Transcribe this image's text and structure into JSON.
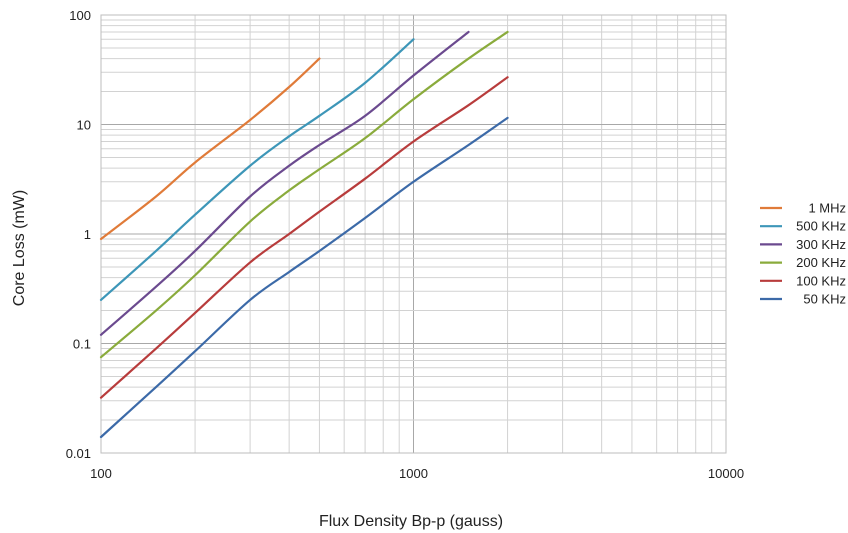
{
  "chart_data": {
    "type": "line",
    "title": "",
    "xlabel": "Flux Density Bp-p (gauss)",
    "ylabel": "Core Loss (mW)",
    "x_scale": "log",
    "y_scale": "log",
    "xlim": [
      100,
      10000
    ],
    "ylim": [
      0.01,
      100
    ],
    "x_ticks": [
      100,
      1000,
      10000
    ],
    "x_tick_labels": [
      "100",
      "1000",
      "10000"
    ],
    "y_ticks": [
      0.01,
      0.1,
      1,
      10,
      100
    ],
    "y_tick_labels": [
      "0.01",
      "0.1",
      "1",
      "10",
      "100"
    ],
    "grid": true,
    "legend_position": "right",
    "series": [
      {
        "name": "1 MHz",
        "color": "#e07b39",
        "x": [
          100,
          150,
          200,
          300,
          400,
          500
        ],
        "y": [
          0.9,
          2.2,
          4.5,
          11,
          22,
          40
        ]
      },
      {
        "name": "500 KHz",
        "color": "#3d96b8",
        "x": [
          100,
          150,
          200,
          300,
          400,
          500,
          700,
          1000
        ],
        "y": [
          0.25,
          0.7,
          1.5,
          4.2,
          7.8,
          12,
          24,
          60
        ]
      },
      {
        "name": "300 KHz",
        "color": "#6b4a8f",
        "x": [
          100,
          150,
          200,
          300,
          400,
          500,
          700,
          1000,
          1500
        ],
        "y": [
          0.12,
          0.33,
          0.7,
          2.2,
          4.2,
          6.5,
          12,
          28,
          70
        ]
      },
      {
        "name": "200 KHz",
        "color": "#8aab3c",
        "x": [
          100,
          150,
          200,
          300,
          400,
          500,
          700,
          1000,
          1500,
          2000
        ],
        "y": [
          0.075,
          0.2,
          0.42,
          1.3,
          2.5,
          3.9,
          7.5,
          17,
          40,
          70
        ]
      },
      {
        "name": "100 KHz",
        "color": "#b83c3c",
        "x": [
          100,
          150,
          200,
          300,
          400,
          500,
          700,
          1000,
          1500,
          2000
        ],
        "y": [
          0.032,
          0.09,
          0.19,
          0.55,
          1.0,
          1.6,
          3.2,
          7,
          15,
          27
        ]
      },
      {
        "name": "50 KHz",
        "color": "#3c6aa8",
        "x": [
          100,
          150,
          200,
          300,
          400,
          500,
          700,
          1000,
          1500,
          2000
        ],
        "y": [
          0.014,
          0.04,
          0.085,
          0.25,
          0.45,
          0.7,
          1.4,
          3,
          6.5,
          11.5
        ]
      }
    ]
  }
}
